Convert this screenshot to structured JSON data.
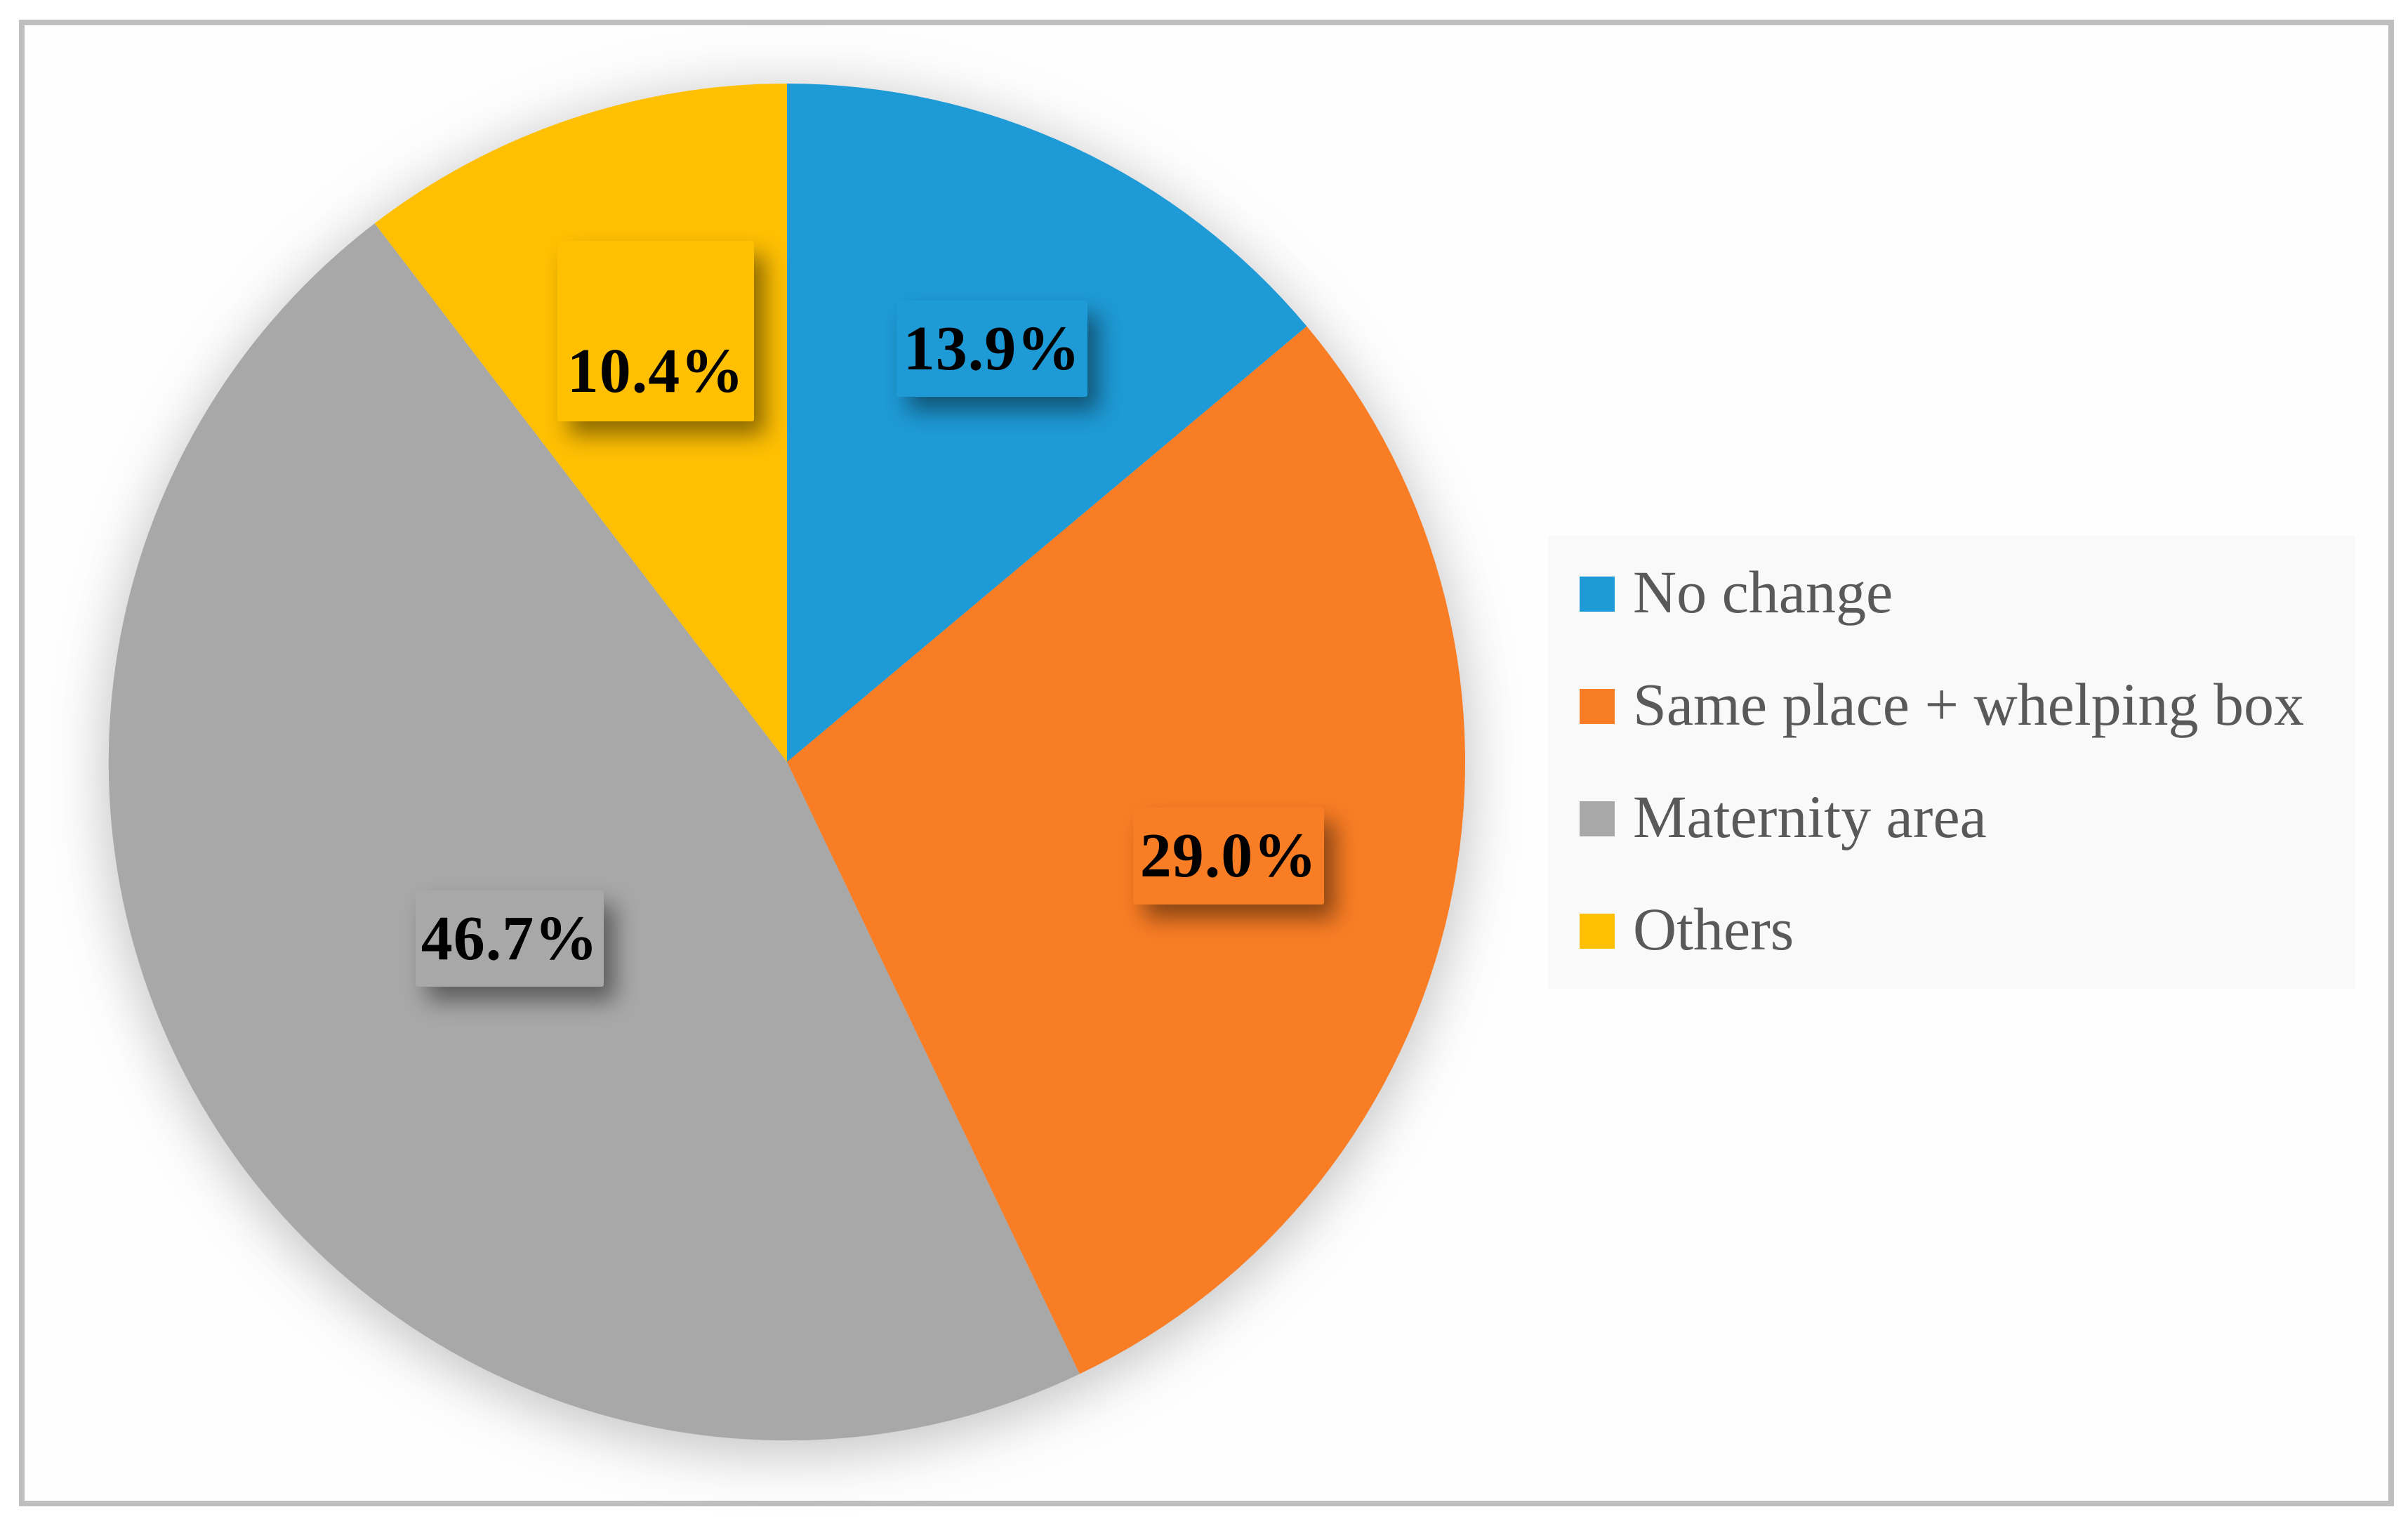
{
  "chart_data": {
    "type": "pie",
    "title": "",
    "start_angle_deg": 0,
    "direction": "clockwise",
    "legend_position": "right",
    "slices": [
      {
        "label": "No change",
        "value_pct": 13.9,
        "display": "13.9%",
        "color": "#1e9ad6"
      },
      {
        "label": "Same place + whelping box",
        "value_pct": 29.0,
        "display": "29.0%",
        "color": "#f97d25"
      },
      {
        "label": "Maternity area",
        "value_pct": 46.7,
        "display": "46.7%",
        "color": "#a8a8a8"
      },
      {
        "label": "Others",
        "value_pct": 10.4,
        "display": "10.4%",
        "color": "#ffc003"
      }
    ]
  },
  "colors": {
    "canvas_border": "#bfbfbf",
    "legend_background": "#f9f9f9",
    "legend_text": "#595959",
    "label_text": "#000000",
    "background": "#ffffff"
  }
}
